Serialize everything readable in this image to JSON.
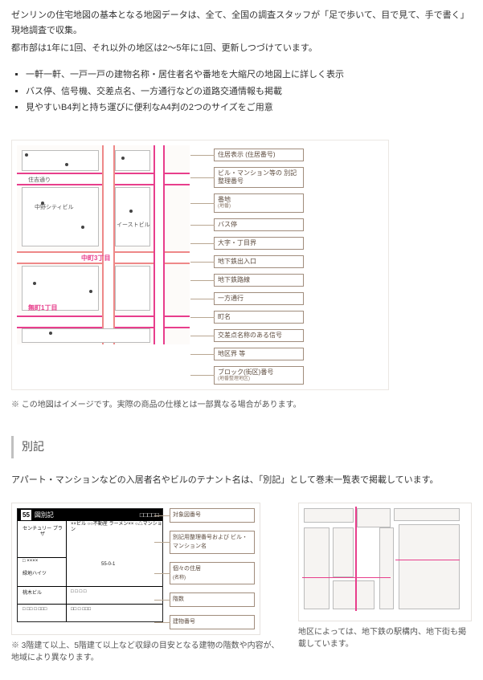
{
  "intro": {
    "line1": "ゼンリンの住宅地図の基本となる地図データは、全て、全国の調査スタッフが「足で歩いて、目で見て、手で書く」現地調査で収集。",
    "line2": "都市部は1年に1回、それ以外の地区は2〜5年に1回、更新しつづけています。"
  },
  "bullets": [
    "一軒一軒、一戸一戸の建物名称・居住者名や番地を大縮尺の地図上に詳しく表示",
    "バス停、信号機、交差点名、一方通行などの道路交通情報も掲載",
    "見やすいB4判と持ち運びに便利なA4判の2つのサイズをご用意"
  ],
  "main_map": {
    "labels": {
      "street_top": "住吉通り",
      "building1": "中野シティビル",
      "building2": "イーストビル",
      "chome_center": "中町3丁目",
      "chome_bottom": "無町1丁目"
    },
    "legend": [
      {
        "t": "住居表示\n(住居番号)"
      },
      {
        "t": "ビル・マンション等の\n別記整理番号"
      },
      {
        "t": "番地",
        "s": "(地番)"
      },
      {
        "t": "バス停"
      },
      {
        "t": "大字・丁目界"
      },
      {
        "t": "地下鉄出入口"
      },
      {
        "t": "地下鉄路線"
      },
      {
        "t": "一方通行"
      },
      {
        "t": "町名"
      },
      {
        "t": "交差点名称のある信号"
      },
      {
        "t": "地区界 等"
      },
      {
        "t": "ブロック(街区)番号",
        "s": "(地番整理地区)"
      }
    ],
    "note": "※ この地図はイメージです。実際の商品の仕様とは一部異なる場合があります。"
  },
  "section": {
    "title": "別記",
    "intro": "アパート・マンションなどの入居者名やビルのテナント名は、「別記」として巻末一覧表で掲載しています。"
  },
  "left_fig": {
    "header_num": "55",
    "header_text": "図別記",
    "cells": {
      "c1": "センチュリー\nプラザ",
      "c2": "××ビル\n○○不動産\nラーメン××\n○△マンション",
      "c3": "55-0-1",
      "c4": "緑地ハイツ",
      "c5": "桃木ビル"
    },
    "legend": [
      {
        "t": "対象図番号"
      },
      {
        "t": "別記用整理番号および\nビル・マンション名"
      },
      {
        "t": "個々の住居",
        "s": "(名称)"
      },
      {
        "t": "階数"
      },
      {
        "t": "建物番号"
      }
    ],
    "caption": "※ 3階建て以上、5階建て以上など収録の目安となる建物の階数や内容が、地域により異なります。"
  },
  "right_fig": {
    "caption": "地区によっては、地下鉄の駅構内、地下街も掲載しています。"
  }
}
